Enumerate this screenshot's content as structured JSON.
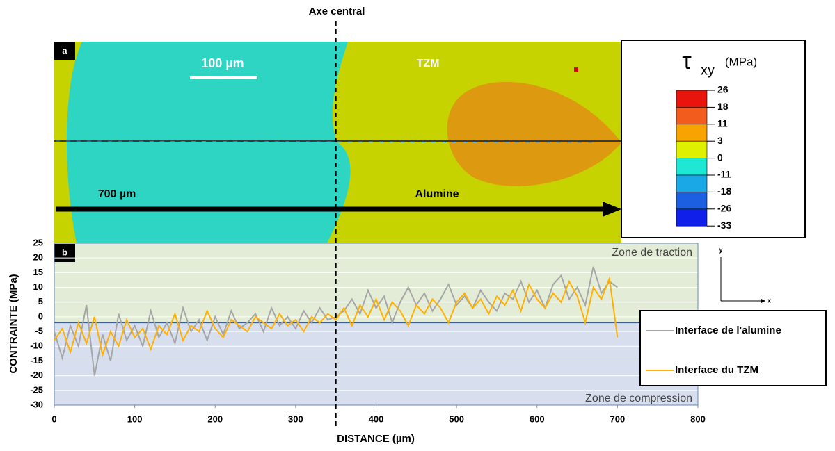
{
  "figure": {
    "axis_title": "Axe central",
    "panel_a_label": "a",
    "scale_bar": "100 µm",
    "tzm_label": "TZM",
    "length_label": "700 µm",
    "alumine_label": "Alumine",
    "colorbar": {
      "symbol": "τ",
      "subscript": "xy",
      "unit": "(MPa)",
      "levels": [
        26,
        18,
        11,
        3,
        0,
        -11,
        -18,
        -26,
        -33
      ],
      "colors": [
        "#e8150f",
        "#f25c1c",
        "#f7a400",
        "#dff000",
        "#1ee8d4",
        "#1aa8e6",
        "#1c5fe0",
        "#1020ea"
      ]
    },
    "axes_y": "y",
    "axes_x": "x"
  },
  "chart_data": {
    "type": "line",
    "panel_label": "b",
    "xlabel": "DISTANCE (µm)",
    "ylabel": "CONTRAINTE (MPa)",
    "zone_top": "Zone de traction",
    "zone_bottom": "Zone de compression",
    "center_x": 350,
    "zone_boundary": -2,
    "xlim": [
      0,
      800
    ],
    "ylim": [
      -30,
      25
    ],
    "xticks": [
      0,
      100,
      200,
      300,
      400,
      500,
      600,
      700,
      800
    ],
    "yticks": [
      25,
      20,
      15,
      10,
      5,
      0,
      -5,
      -10,
      -15,
      -20,
      -25,
      -30
    ],
    "x": [
      0,
      10,
      20,
      30,
      40,
      50,
      60,
      70,
      80,
      90,
      100,
      110,
      120,
      130,
      140,
      150,
      160,
      170,
      180,
      190,
      200,
      210,
      220,
      230,
      240,
      250,
      260,
      270,
      280,
      290,
      300,
      310,
      320,
      330,
      340,
      350,
      360,
      370,
      380,
      390,
      400,
      410,
      420,
      430,
      440,
      450,
      460,
      470,
      480,
      490,
      500,
      510,
      520,
      530,
      540,
      550,
      560,
      570,
      580,
      590,
      600,
      610,
      620,
      630,
      640,
      650,
      660,
      670,
      680,
      690,
      700
    ],
    "series": [
      {
        "name": "Interface de l'alumine",
        "color": "#a6a6a6",
        "values": [
          -5,
          -14,
          -3,
          -10,
          4,
          -20,
          -6,
          -15,
          1,
          -8,
          -3,
          -10,
          2,
          -7,
          -2,
          -9,
          3,
          -5,
          -1,
          -8,
          0,
          -6,
          2,
          -4,
          -2,
          1,
          -5,
          3,
          -3,
          0,
          -4,
          2,
          -2,
          3,
          -1,
          0,
          2,
          6,
          1,
          9,
          3,
          7,
          -2,
          5,
          10,
          4,
          8,
          2,
          6,
          11,
          4,
          7,
          3,
          9,
          5,
          2,
          8,
          6,
          12,
          5,
          9,
          3,
          11,
          14,
          6,
          10,
          4,
          17,
          8,
          12,
          10
        ]
      },
      {
        "name": "Interface du TZM",
        "color": "#ffb000",
        "values": [
          -8,
          -4,
          -12,
          -2,
          -9,
          0,
          -13,
          -5,
          -10,
          -1,
          -7,
          -4,
          -11,
          -3,
          -6,
          1,
          -8,
          -3,
          -5,
          2,
          -4,
          -7,
          -1,
          -3,
          -5,
          0,
          -2,
          -4,
          1,
          -3,
          -1,
          -5,
          0,
          -2,
          1,
          -1,
          3,
          -3,
          4,
          0,
          6,
          -1,
          5,
          2,
          -3,
          4,
          1,
          6,
          3,
          -2,
          5,
          8,
          3,
          6,
          1,
          7,
          4,
          9,
          2,
          11,
          6,
          3,
          8,
          5,
          12,
          7,
          -2,
          10,
          6,
          13,
          -7
        ]
      }
    ]
  }
}
